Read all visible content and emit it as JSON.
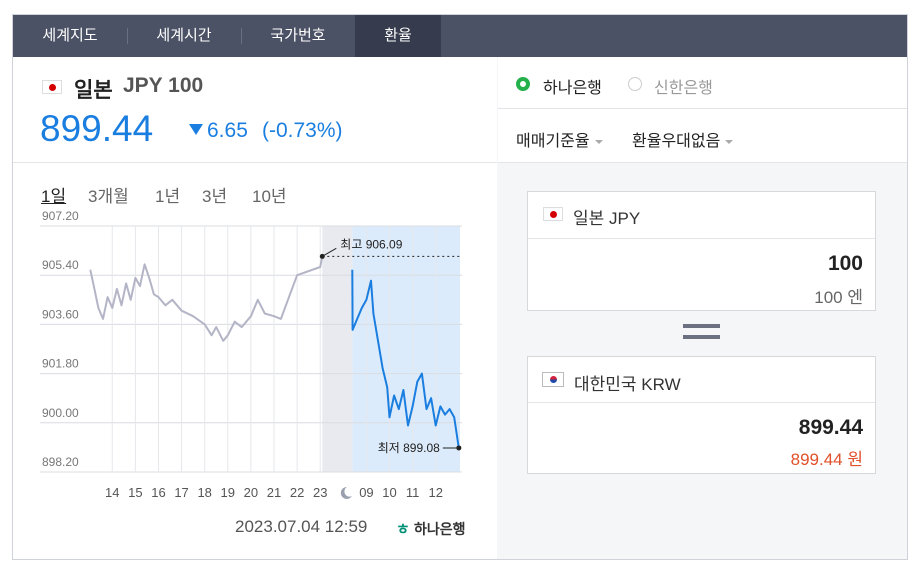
{
  "tabs": {
    "items": [
      "세계지도",
      "세계시간",
      "국가번호",
      "환율"
    ],
    "active": 3
  },
  "header": {
    "country": "일본",
    "currency": "JPY 100",
    "price": "899.44",
    "change": "6.65",
    "change_pct": "(-0.73%)"
  },
  "banks": {
    "items": [
      "하나은행",
      "신한은행"
    ],
    "selected": 0
  },
  "options": [
    "매매기준율",
    "환율우대없음"
  ],
  "converter": {
    "from": {
      "label": "일본 JPY",
      "amount": "100",
      "amount_text": "100 엔"
    },
    "to": {
      "label": "대한민국 KRW",
      "amount": "899.44",
      "amount_text": "899.44 원"
    }
  },
  "period_tabs": {
    "items": [
      "1일",
      "3개월",
      "1년",
      "3년",
      "10년"
    ],
    "active": 0
  },
  "footer": {
    "timestamp": "2023.07.04 12:59",
    "source": "하나은행"
  },
  "chart_data": {
    "type": "line",
    "xlim": [
      -1.05,
      15.05
    ],
    "xticks": [
      {
        "value": 0,
        "label": "14"
      },
      {
        "value": 1,
        "label": "15"
      },
      {
        "value": 2,
        "label": "16"
      },
      {
        "value": 3,
        "label": "17"
      },
      {
        "value": 4,
        "label": "18"
      },
      {
        "value": 5,
        "label": "19"
      },
      {
        "value": 6,
        "label": "20"
      },
      {
        "value": 7,
        "label": "21"
      },
      {
        "value": 8,
        "label": "22"
      },
      {
        "value": 9,
        "label": "23"
      },
      {
        "value": 11,
        "label": "09"
      },
      {
        "value": 12,
        "label": "10"
      },
      {
        "value": 13,
        "label": "11"
      },
      {
        "value": 14,
        "label": "12"
      }
    ],
    "ylim": [
      898.2,
      907.2
    ],
    "yticks": [
      {
        "value": 898.2,
        "label": "898.20"
      },
      {
        "value": 900,
        "label": "900.00"
      },
      {
        "value": 901.8,
        "label": "901.80"
      },
      {
        "value": 903.6,
        "label": "903.60"
      },
      {
        "value": 905.4,
        "label": "905.40"
      },
      {
        "value": 907.2,
        "label": "907.20"
      }
    ],
    "grid": true,
    "series": [
      {
        "color": "#b3b5c6",
        "x": [
          -0.95,
          -0.8,
          -0.6,
          -0.4,
          -0.2,
          0,
          0.2,
          0.4,
          0.6,
          0.8,
          1.0,
          1.2,
          1.4,
          1.6,
          1.8,
          2.0,
          2.3,
          2.6,
          3.0,
          3.5,
          4.0,
          4.3,
          4.5,
          4.8,
          5.0,
          5.3,
          5.6,
          6.0,
          6.3,
          6.6,
          7.0,
          7.3,
          8.0,
          9.0,
          9.09
        ],
        "values": [
          905.6,
          905.0,
          904.2,
          903.8,
          904.6,
          904.2,
          904.9,
          904.3,
          905.1,
          904.5,
          905.3,
          905.0,
          905.8,
          905.3,
          904.7,
          904.6,
          904.3,
          904.5,
          904.1,
          903.9,
          903.6,
          903.2,
          903.5,
          903.0,
          903.2,
          903.7,
          903.5,
          903.9,
          904.5,
          904.0,
          903.9,
          903.8,
          905.4,
          905.7,
          906.09
        ]
      },
      {
        "color": "#1a7ee0",
        "x": [
          10.39,
          10.4,
          10.6,
          10.8,
          11.0,
          11.2,
          11.3,
          11.5,
          11.7,
          11.9,
          12.0,
          12.2,
          12.4,
          12.6,
          12.8,
          13.0,
          13.2,
          13.4,
          13.6,
          13.8,
          14.0,
          14.2,
          14.4,
          14.6,
          14.8,
          15.0
        ],
        "values": [
          905.6,
          903.4,
          903.8,
          904.2,
          904.5,
          905.2,
          904.0,
          903.0,
          902.0,
          901.3,
          900.2,
          901.0,
          900.5,
          901.2,
          899.9,
          900.6,
          901.5,
          901.8,
          900.5,
          900.9,
          899.9,
          900.6,
          900.3,
          900.5,
          900.2,
          899.08
        ]
      }
    ],
    "annotations": [
      {
        "text": "최고 906.09",
        "x": 9.09,
        "y": 906.09
      },
      {
        "text": "최저 899.08",
        "x": 15.0,
        "y": 899.08
      }
    ]
  }
}
